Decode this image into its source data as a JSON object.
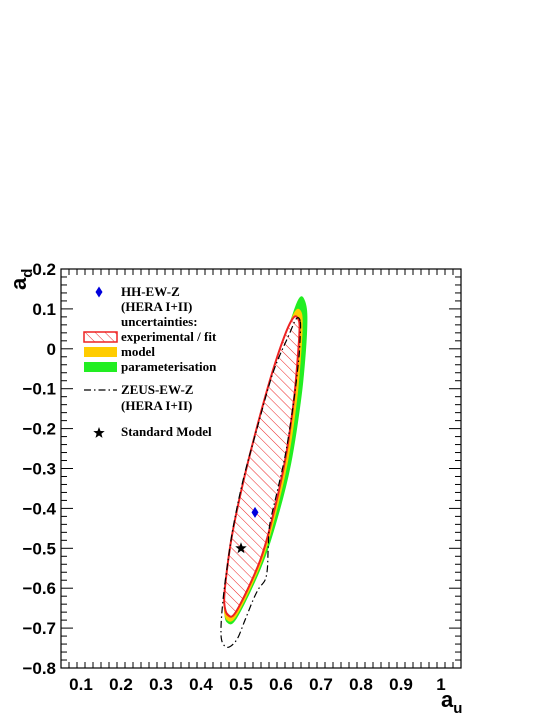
{
  "chart_data": {
    "type": "scatter",
    "xlabel": "a",
    "xlabel_sub": "u",
    "ylabel": "a",
    "ylabel_sub": "d",
    "xlim": [
      0.05,
      1.05
    ],
    "ylim": [
      -0.8,
      0.2
    ],
    "xticks": [
      0.1,
      0.2,
      0.3,
      0.4,
      0.5,
      0.6,
      0.7,
      0.8,
      0.9,
      1
    ],
    "xtick_labels": [
      "0.1",
      "0.2",
      "0.3",
      "0.4",
      "0.5",
      "0.6",
      "0.7",
      "0.8",
      "0.9",
      "1"
    ],
    "yticks": [
      -0.8,
      -0.7,
      -0.6,
      -0.5,
      -0.4,
      -0.3,
      -0.2,
      -0.1,
      0,
      0.1,
      0.2
    ],
    "ytick_labels": [
      "−0.8",
      "−0.7",
      "−0.6",
      "−0.5",
      "−0.4",
      "−0.3",
      "−0.2",
      "−0.1",
      "0",
      "0.1",
      "0.2"
    ],
    "grid": false,
    "legend_position": "top-left",
    "series": [
      {
        "name": "HH-EW-Z (HERA I+II)",
        "marker": "diamond",
        "color": "#0000dd",
        "points": [
          {
            "x": 0.535,
            "y": -0.41
          }
        ]
      },
      {
        "name": "Standard Model",
        "marker": "star",
        "color": "#000000",
        "points": [
          {
            "x": 0.5,
            "y": -0.5
          }
        ]
      }
    ],
    "contours": [
      {
        "name": "parameterisation",
        "style": "fill",
        "color": "#22ee22",
        "points": [
          [
            0.66,
            0.12
          ],
          [
            0.648,
            0.13
          ],
          [
            0.63,
            0.09
          ],
          [
            0.59,
            -0.04
          ],
          [
            0.545,
            -0.2
          ],
          [
            0.51,
            -0.33
          ],
          [
            0.484,
            -0.45
          ],
          [
            0.465,
            -0.57
          ],
          [
            0.458,
            -0.65
          ],
          [
            0.465,
            -0.686
          ],
          [
            0.49,
            -0.675
          ],
          [
            0.55,
            -0.55
          ],
          [
            0.59,
            -0.43
          ],
          [
            0.625,
            -0.29
          ],
          [
            0.65,
            -0.13
          ],
          [
            0.662,
            -0.01
          ],
          [
            0.666,
            0.08
          ]
        ]
      },
      {
        "name": "model",
        "style": "fill",
        "color": "#ffcc00",
        "points": [
          [
            0.652,
            0.09
          ],
          [
            0.638,
            0.098
          ],
          [
            0.618,
            0.055
          ],
          [
            0.58,
            -0.06
          ],
          [
            0.538,
            -0.21
          ],
          [
            0.505,
            -0.34
          ],
          [
            0.48,
            -0.46
          ],
          [
            0.463,
            -0.57
          ],
          [
            0.457,
            -0.645
          ],
          [
            0.465,
            -0.68
          ],
          [
            0.49,
            -0.668
          ],
          [
            0.55,
            -0.54
          ],
          [
            0.586,
            -0.42
          ],
          [
            0.618,
            -0.28
          ],
          [
            0.64,
            -0.13
          ],
          [
            0.65,
            -0.02
          ],
          [
            0.654,
            0.05
          ]
        ]
      },
      {
        "name": "experimental / fit",
        "style": "hatch",
        "color": "#ee2222",
        "points": [
          [
            0.645,
            0.07
          ],
          [
            0.633,
            0.08
          ],
          [
            0.612,
            0.04
          ],
          [
            0.575,
            -0.07
          ],
          [
            0.535,
            -0.215
          ],
          [
            0.503,
            -0.345
          ],
          [
            0.478,
            -0.465
          ],
          [
            0.463,
            -0.57
          ],
          [
            0.458,
            -0.635
          ],
          [
            0.468,
            -0.668
          ],
          [
            0.49,
            -0.655
          ],
          [
            0.548,
            -0.53
          ],
          [
            0.582,
            -0.41
          ],
          [
            0.612,
            -0.27
          ],
          [
            0.632,
            -0.13
          ],
          [
            0.642,
            -0.02
          ],
          [
            0.646,
            0.04
          ]
        ]
      },
      {
        "name": "ZEUS-EW-Z (HERA I+II)",
        "style": "dashdot",
        "color": "#000000",
        "points": [
          [
            0.648,
            0.07
          ],
          [
            0.638,
            0.075
          ],
          [
            0.62,
            0.035
          ],
          [
            0.58,
            -0.06
          ],
          [
            0.54,
            -0.2
          ],
          [
            0.505,
            -0.33
          ],
          [
            0.48,
            -0.45
          ],
          [
            0.465,
            -0.55
          ],
          [
            0.455,
            -0.63
          ],
          [
            0.45,
            -0.7
          ],
          [
            0.453,
            -0.735
          ],
          [
            0.468,
            -0.748
          ],
          [
            0.49,
            -0.728
          ],
          [
            0.51,
            -0.68
          ],
          [
            0.53,
            -0.63
          ],
          [
            0.545,
            -0.6
          ],
          [
            0.56,
            -0.58
          ],
          [
            0.566,
            -0.55
          ],
          [
            0.568,
            -0.5
          ],
          [
            0.572,
            -0.44
          ],
          [
            0.59,
            -0.36
          ],
          [
            0.612,
            -0.26
          ],
          [
            0.632,
            -0.13
          ],
          [
            0.644,
            -0.03
          ],
          [
            0.648,
            0.03
          ]
        ]
      }
    ],
    "legend": {
      "header": "uncertainties:",
      "entries": [
        {
          "label": "HH-EW-Z",
          "symbol": "diamond",
          "color": "#0000dd"
        },
        {
          "label": "(HERA I+II)",
          "symbol": "none"
        },
        {
          "label": "uncertainties:",
          "symbol": "none"
        },
        {
          "label": "experimental / fit",
          "symbol": "hatch",
          "color": "#ee2222"
        },
        {
          "label": "model",
          "symbol": "fill",
          "color": "#ffcc00"
        },
        {
          "label": "parameterisation",
          "symbol": "fill",
          "color": "#22ee22"
        },
        {
          "label": "ZEUS-EW-Z",
          "symbol": "dashdot",
          "color": "#000000"
        },
        {
          "label": "(HERA I+II)",
          "symbol": "none"
        },
        {
          "label": "Standard Model",
          "symbol": "star",
          "color": "#000000"
        }
      ]
    }
  }
}
